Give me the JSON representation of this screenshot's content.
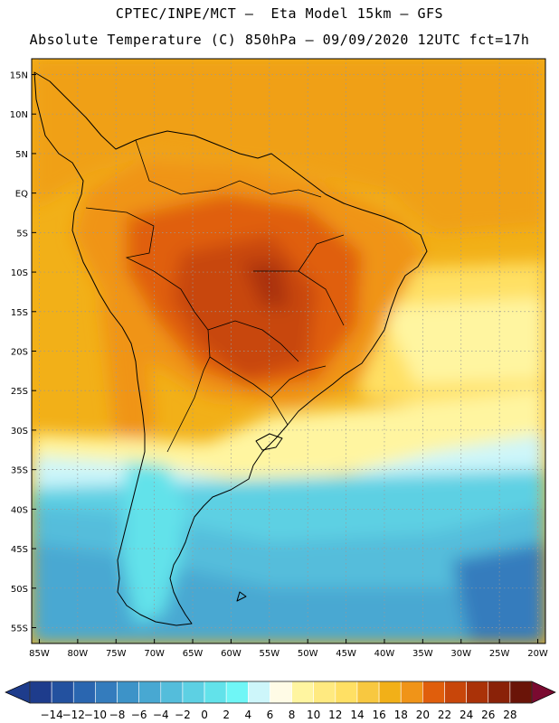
{
  "header": {
    "line1": "CPTEC/INPE/MCT –  Eta Model 15km – GFS",
    "line2": "Absolute Temperature (C) 850hPa – 09/09/2020 12UTC fct=17h"
  },
  "map": {
    "lat_labels": [
      "15N",
      "10N",
      "5N",
      "EQ",
      "5S",
      "10S",
      "15S",
      "20S",
      "25S",
      "30S",
      "35S",
      "40S",
      "45S",
      "50S",
      "55S"
    ],
    "lon_labels": [
      "85W",
      "80W",
      "75W",
      "70W",
      "65W",
      "60W",
      "55W",
      "50W",
      "45W",
      "40W",
      "35W",
      "30W",
      "25W",
      "20W"
    ],
    "lat_range": [
      17,
      -57
    ],
    "lon_range": [
      -86,
      -19
    ],
    "grid": true
  },
  "colorbar": {
    "labels": [
      "-14",
      "-12",
      "-10",
      "-8",
      "-6",
      "-4",
      "-2",
      "0",
      "2",
      "4",
      "6",
      "8",
      "10",
      "12",
      "14",
      "16",
      "18",
      "20",
      "22",
      "24",
      "26",
      "28"
    ],
    "colors": [
      "#1e3c8c",
      "#23519f",
      "#2a66b0",
      "#347cbd",
      "#3d93c8",
      "#48a8d2",
      "#54bddb",
      "#5dd0e3",
      "#62e2ea",
      "#6ff6f6",
      "#cdf6fa",
      "#fffbe6",
      "#fff5a0",
      "#ffea80",
      "#ffe064",
      "#f8c840",
      "#f2b018",
      "#f09418",
      "#e05e0c",
      "#c8460a",
      "#aa3208",
      "#8a2208",
      "#6a1408"
    ]
  },
  "chart_data": {
    "type": "heatmap",
    "title": "Absolute Temperature (C) 850hPa – 09/09/2020 12UTC fct=17h",
    "xlabel": "",
    "ylabel": "",
    "x_ticks": [
      "85W",
      "80W",
      "75W",
      "70W",
      "65W",
      "60W",
      "55W",
      "50W",
      "45W",
      "40W",
      "35W",
      "30W",
      "25W",
      "20W"
    ],
    "y_ticks": [
      "15N",
      "10N",
      "5N",
      "EQ",
      "5S",
      "10S",
      "15S",
      "20S",
      "25S",
      "30S",
      "35S",
      "40S",
      "45S",
      "50S",
      "55S"
    ],
    "value_range": [
      -14,
      28
    ],
    "zones": [
      {
        "region": "northern ocean",
        "value_range": [
          16,
          18
        ]
      },
      {
        "region": "central Brazil",
        "value_range": [
          24,
          28
        ]
      },
      {
        "region": "subtropical ocean 20S-28S",
        "value_range": [
          10,
          14
        ]
      },
      {
        "region": "frontal band near 30S",
        "value_range": [
          4,
          8
        ]
      },
      {
        "region": "southern ocean 40S-55S",
        "value_range": [
          -4,
          2
        ]
      }
    ]
  }
}
